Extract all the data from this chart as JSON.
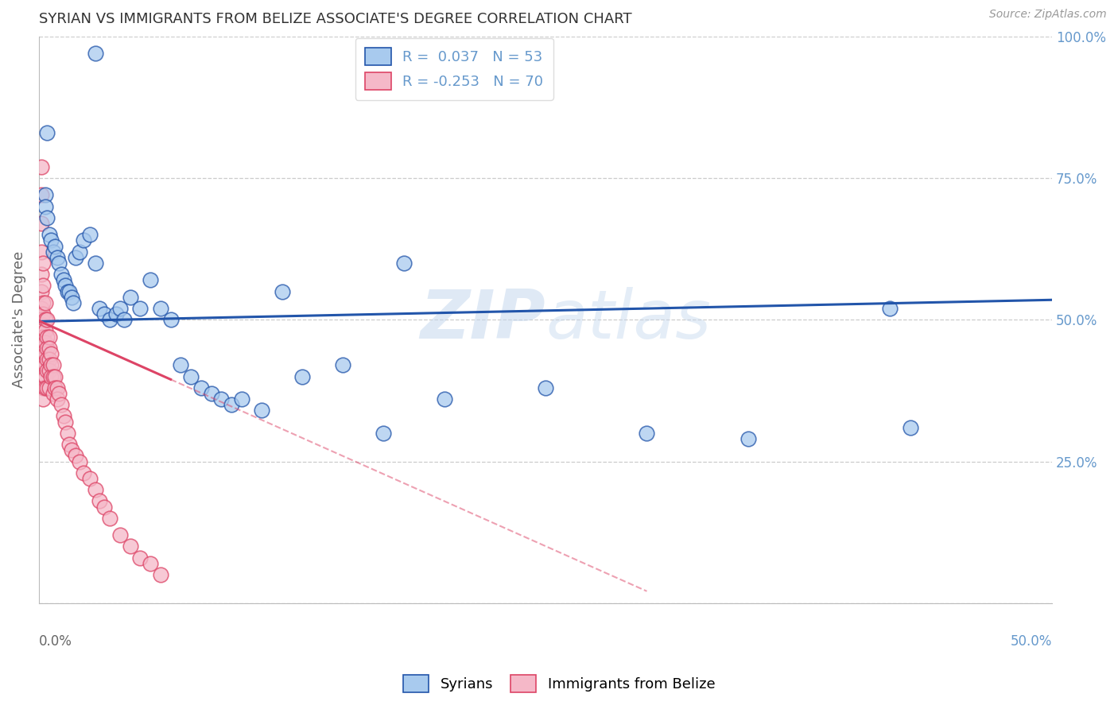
{
  "title": "SYRIAN VS IMMIGRANTS FROM BELIZE ASSOCIATE'S DEGREE CORRELATION CHART",
  "source": "Source: ZipAtlas.com",
  "ylabel": "Associate's Degree",
  "xlim": [
    0.0,
    0.5
  ],
  "ylim": [
    0.0,
    1.0
  ],
  "legend_r_blue": "0.037",
  "legend_n_blue": "53",
  "legend_r_pink": "-0.253",
  "legend_n_pink": "70",
  "blue_color": "#A8CAEE",
  "pink_color": "#F5B8C8",
  "line_blue_color": "#2255AA",
  "line_pink_color": "#DD4466",
  "watermark_color": "#C5D8EE",
  "background_color": "#ffffff",
  "grid_color": "#CCCCCC",
  "title_color": "#333333",
  "right_axis_color": "#6699CC",
  "syrians_x": [
    0.028,
    0.004,
    0.003,
    0.003,
    0.004,
    0.005,
    0.006,
    0.007,
    0.008,
    0.009,
    0.01,
    0.011,
    0.012,
    0.013,
    0.014,
    0.015,
    0.016,
    0.017,
    0.018,
    0.02,
    0.022,
    0.025,
    0.028,
    0.03,
    0.032,
    0.035,
    0.038,
    0.04,
    0.042,
    0.045,
    0.05,
    0.055,
    0.06,
    0.065,
    0.07,
    0.075,
    0.08,
    0.085,
    0.09,
    0.095,
    0.1,
    0.11,
    0.12,
    0.13,
    0.15,
    0.17,
    0.18,
    0.2,
    0.25,
    0.3,
    0.35,
    0.42,
    0.43
  ],
  "syrians_y": [
    0.97,
    0.83,
    0.72,
    0.7,
    0.68,
    0.65,
    0.64,
    0.62,
    0.63,
    0.61,
    0.6,
    0.58,
    0.57,
    0.56,
    0.55,
    0.55,
    0.54,
    0.53,
    0.61,
    0.62,
    0.64,
    0.65,
    0.6,
    0.52,
    0.51,
    0.5,
    0.51,
    0.52,
    0.5,
    0.54,
    0.52,
    0.57,
    0.52,
    0.5,
    0.42,
    0.4,
    0.38,
    0.37,
    0.36,
    0.35,
    0.36,
    0.34,
    0.55,
    0.4,
    0.42,
    0.3,
    0.6,
    0.36,
    0.38,
    0.3,
    0.29,
    0.52,
    0.31
  ],
  "belize_x": [
    0.001,
    0.001,
    0.001,
    0.001,
    0.001,
    0.001,
    0.001,
    0.001,
    0.001,
    0.002,
    0.002,
    0.002,
    0.002,
    0.002,
    0.002,
    0.002,
    0.002,
    0.002,
    0.002,
    0.002,
    0.002,
    0.003,
    0.003,
    0.003,
    0.003,
    0.003,
    0.003,
    0.003,
    0.003,
    0.004,
    0.004,
    0.004,
    0.004,
    0.004,
    0.004,
    0.005,
    0.005,
    0.005,
    0.005,
    0.005,
    0.006,
    0.006,
    0.006,
    0.007,
    0.007,
    0.007,
    0.008,
    0.008,
    0.009,
    0.009,
    0.01,
    0.011,
    0.012,
    0.013,
    0.014,
    0.015,
    0.016,
    0.018,
    0.02,
    0.022,
    0.025,
    0.028,
    0.03,
    0.032,
    0.035,
    0.04,
    0.045,
    0.05,
    0.055,
    0.06
  ],
  "belize_y": [
    0.77,
    0.72,
    0.67,
    0.62,
    0.58,
    0.55,
    0.52,
    0.5,
    0.48,
    0.6,
    0.56,
    0.53,
    0.51,
    0.49,
    0.47,
    0.45,
    0.43,
    0.42,
    0.4,
    0.38,
    0.36,
    0.53,
    0.5,
    0.48,
    0.46,
    0.44,
    0.42,
    0.4,
    0.38,
    0.5,
    0.47,
    0.45,
    0.43,
    0.41,
    0.38,
    0.47,
    0.45,
    0.43,
    0.41,
    0.38,
    0.44,
    0.42,
    0.4,
    0.42,
    0.4,
    0.37,
    0.4,
    0.38,
    0.38,
    0.36,
    0.37,
    0.35,
    0.33,
    0.32,
    0.3,
    0.28,
    0.27,
    0.26,
    0.25,
    0.23,
    0.22,
    0.2,
    0.18,
    0.17,
    0.15,
    0.12,
    0.1,
    0.08,
    0.07,
    0.05
  ],
  "blue_line_x0": 0.0,
  "blue_line_y0": 0.497,
  "blue_line_x1": 0.5,
  "blue_line_y1": 0.535,
  "pink_line_x0": 0.0,
  "pink_line_y0": 0.498,
  "pink_line_x1": 0.2,
  "pink_line_y1": 0.18
}
